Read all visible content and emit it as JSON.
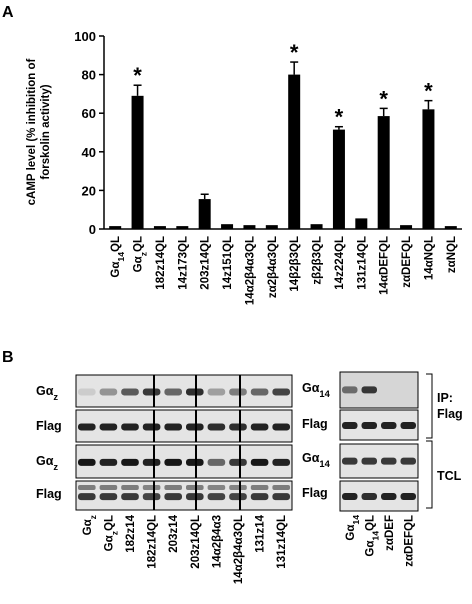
{
  "panel_a_label": "A",
  "panel_b_label": "B",
  "chart_data": {
    "type": "bar",
    "ylabel_line1": "cAMP level (% inhibition of",
    "ylabel_line2": "forskolin activity)",
    "ylim": [
      0,
      100
    ],
    "yticks": [
      0,
      20,
      40,
      60,
      80,
      100
    ],
    "categories": [
      "Gα14QL",
      "GαzQL",
      "182z14QL",
      "14z173QL",
      "203z14QL",
      "14z151QL",
      "14α2β4α3QL",
      "zα2β4α3QL",
      "14β2β3QL",
      "zβ2β3QL",
      "14z224QL",
      "131z14QL",
      "14αDEFQL",
      "zαDEFQL",
      "14αNQL",
      "zαNQL"
    ],
    "values": [
      1.5,
      69,
      1.5,
      1.5,
      15.5,
      2.5,
      2,
      2,
      80,
      2.5,
      51.5,
      5.5,
      58.5,
      2,
      62,
      1.5
    ],
    "errors": [
      0.3,
      5.5,
      0.3,
      0.3,
      2.5,
      0.5,
      0.3,
      0.3,
      6.5,
      0.3,
      1.5,
      0.5,
      4,
      0.3,
      4.5,
      0.3
    ],
    "significant_marker": "*",
    "significant": [
      false,
      true,
      false,
      false,
      false,
      false,
      false,
      false,
      true,
      false,
      true,
      false,
      true,
      false,
      true,
      false
    ],
    "bar_color": "#000000"
  },
  "blot": {
    "row_labels_left": [
      "Gαz",
      "Flag",
      "Gαz",
      "Flag"
    ],
    "row_labels_right": [
      "Gα14",
      "Flag",
      "Gα14",
      "Flag"
    ],
    "ip_label_line1": "IP:",
    "ip_label_line2": "Flag",
    "tcl_label": "TCL",
    "left_lanes": [
      "Gαz",
      "GαzQL",
      "182z14",
      "182z14QL",
      "203z14",
      "203z14QL",
      "14α2β4α3",
      "14α2β4α3QL",
      "131z14",
      "131z14QL"
    ],
    "right_lanes": [
      "Gα14",
      "Gα14QL",
      "zαDEF",
      "zαDEFQL"
    ]
  }
}
